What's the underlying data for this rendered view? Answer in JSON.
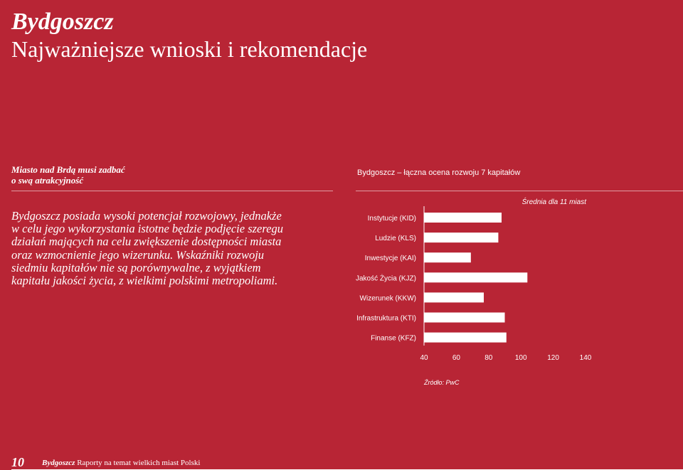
{
  "header": {
    "title": "Bydgoszcz",
    "subtitle": "Najważniejsze wnioski i rekomendacje"
  },
  "lead": {
    "lines": [
      "Miasto nad Brdą musi zadbać",
      "o swą atrakcyjność"
    ]
  },
  "body": {
    "lines": [
      "Bydgoszcz posiada wysoki potencjał rozwojowy, jednakże",
      "w celu jego wykorzystania istotne będzie podjęcie szeregu",
      "działań mających na celu zwiększenie dostępności miasta",
      "oraz wzmocnienie jego wizerunku. Wskaźniki rozwoju",
      "siedmiu kapitałów nie są porównywalne, z wyjątkiem",
      "kapitału jakości życia, z wielkimi polskimi metropoliami."
    ]
  },
  "chart_data": {
    "type": "bar",
    "orientation": "horizontal",
    "title": "Bydgoszcz – łączna ocena rozwoju 7 kapitałów",
    "categories": [
      "Instytucje (KID)",
      "Ludzie (KLS)",
      "Inwestycje (KAI)",
      "Jakość Życia (KJZ)",
      "Wizerunek (KKW)",
      "Infrastruktura (KTI)",
      "Finanse (KFZ)"
    ],
    "values": [
      88,
      86,
      69,
      104,
      77,
      90,
      91
    ],
    "xlim": [
      40,
      140
    ],
    "xticks": [
      "40",
      "60",
      "80",
      "100",
      "120",
      "140"
    ],
    "reference_label": "Średnia dla 11 miast",
    "source": "Źródło: PwC",
    "bar_color": "#ffffff",
    "grid": false
  },
  "footer": {
    "page_number": "10",
    "city": "Bydgoszcz",
    "series": "Raporty na temat wielkich miast Polski"
  },
  "colors": {
    "background": "#b82535",
    "text": "#ffffff"
  }
}
